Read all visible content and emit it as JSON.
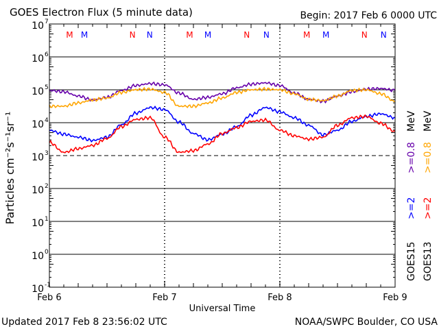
{
  "chart_data": {
    "type": "line",
    "title": "GOES Electron Flux (5 minute data)",
    "begin_label": "Begin: 2017 Feb 6 0000 UTC",
    "xlabel": "Universal Time",
    "ylabel": "Particles cm⁻²s⁻¹sr⁻¹",
    "yscale": "log",
    "ylim": [
      0.1,
      10000000
    ],
    "y_ticks": [
      {
        "base": "10",
        "exp": "7"
      },
      {
        "base": "10",
        "exp": "6"
      },
      {
        "base": "10",
        "exp": "5"
      },
      {
        "base": "10",
        "exp": "4"
      },
      {
        "base": "10",
        "exp": "3"
      },
      {
        "base": "10",
        "exp": "2"
      },
      {
        "base": "10",
        "exp": "1"
      },
      {
        "base": "10",
        "exp": "0"
      },
      {
        "base": "10",
        "exp": "-1"
      }
    ],
    "x_ticks": [
      "Feb 6",
      "Feb 7",
      "Feb 8",
      "Feb 9"
    ],
    "x_unit": "hours since 2017 Feb 6 0000 UTC",
    "xlim": [
      0,
      72
    ],
    "x": [
      0,
      3,
      6,
      9,
      12,
      15,
      18,
      21,
      24,
      27,
      30,
      33,
      36,
      39,
      42,
      45,
      48,
      51,
      54,
      57,
      60,
      63,
      66,
      69,
      72
    ],
    "threshold_line": 1000,
    "series": [
      {
        "name": "GOES15 >=0.8 MeV",
        "color": "#6600aa",
        "log10_values": [
          4.98,
          4.94,
          4.81,
          4.69,
          4.77,
          4.98,
          5.13,
          5.19,
          5.15,
          4.9,
          4.71,
          4.77,
          4.88,
          5.06,
          5.17,
          5.21,
          5.13,
          4.9,
          4.71,
          4.65,
          4.81,
          4.94,
          5.02,
          5.04,
          4.98
        ]
      },
      {
        "name": "GOES13 >=0.8 MeV",
        "color": "#ffa500",
        "log10_values": [
          4.5,
          4.5,
          4.6,
          4.69,
          4.75,
          4.92,
          5.0,
          5.02,
          4.92,
          4.5,
          4.5,
          4.6,
          4.75,
          4.92,
          5.0,
          5.02,
          5.0,
          4.88,
          4.71,
          4.67,
          4.81,
          4.98,
          5.0,
          4.88,
          4.65
        ]
      },
      {
        "name": "GOES15 >=2 MeV",
        "color": "#0000ff",
        "log10_values": [
          3.77,
          3.65,
          3.56,
          3.46,
          3.56,
          3.94,
          4.29,
          4.46,
          4.4,
          4.02,
          3.67,
          3.48,
          3.65,
          3.88,
          4.23,
          4.46,
          4.33,
          4.15,
          3.92,
          3.63,
          3.77,
          4.04,
          4.19,
          4.27,
          4.15
        ]
      },
      {
        "name": "GOES13 >=2 MeV",
        "color": "#ff0000",
        "log10_values": [
          3.4,
          3.1,
          3.21,
          3.31,
          3.52,
          3.88,
          4.1,
          4.15,
          3.56,
          3.1,
          3.15,
          3.35,
          3.67,
          3.85,
          4.04,
          4.08,
          3.77,
          3.6,
          3.5,
          3.56,
          3.92,
          4.15,
          4.19,
          3.98,
          3.73
        ]
      }
    ],
    "legend": {
      "placement": "right",
      "goes15": {
        "sat": "GOES15",
        "ch2": ">=2",
        "ch08": ">=0.8",
        "unit": "MeV"
      },
      "goes13": {
        "sat": "GOES13",
        "ch2": ">=2",
        "ch08": ">=0.8",
        "unit": "MeV"
      }
    },
    "markers": [
      {
        "label": "M",
        "hour": 4.2,
        "color": "#ff0000"
      },
      {
        "label": "M",
        "hour": 7.3,
        "color": "#0000ff"
      },
      {
        "label": "N",
        "hour": 17.3,
        "color": "#ff0000"
      },
      {
        "label": "N",
        "hour": 20.9,
        "color": "#0000ff"
      },
      {
        "label": "M",
        "hour": 29.2,
        "color": "#ff0000"
      },
      {
        "label": "M",
        "hour": 33.0,
        "color": "#0000ff"
      },
      {
        "label": "N",
        "hour": 41.1,
        "color": "#ff0000"
      },
      {
        "label": "N",
        "hour": 45.2,
        "color": "#0000ff"
      },
      {
        "label": "M",
        "hour": 53.6,
        "color": "#ff0000"
      },
      {
        "label": "M",
        "hour": 57.6,
        "color": "#0000ff"
      },
      {
        "label": "N",
        "hour": 65.6,
        "color": "#ff0000"
      },
      {
        "label": "N",
        "hour": 69.6,
        "color": "#0000ff"
      }
    ]
  },
  "footer": {
    "updated": "Updated 2017 Feb  8 23:56:02 UTC",
    "credit": "NOAA/SWPC Boulder, CO USA"
  }
}
